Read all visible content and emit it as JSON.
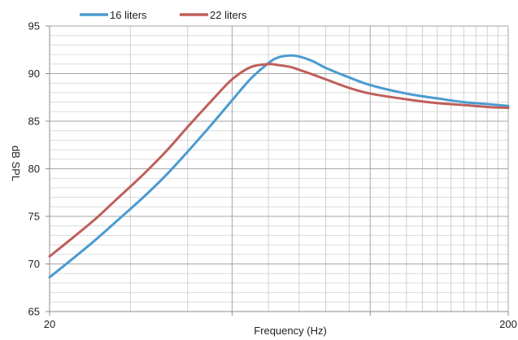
{
  "chart_data": {
    "type": "line",
    "title": "",
    "xlabel": "Frequency (Hz)",
    "ylabel": "dB SPL",
    "x_scale": "log",
    "xlim": [
      20,
      200
    ],
    "ylim": [
      65,
      95
    ],
    "x_tick_labels": [
      "20",
      "200"
    ],
    "y_ticks": [
      65,
      70,
      75,
      80,
      85,
      90,
      95
    ],
    "grid": true,
    "legend_position": "top-left",
    "series": [
      {
        "name": "16 liters",
        "color": "#4A9BD1",
        "x": [
          20,
          22,
          25,
          28,
          32,
          36,
          40,
          45,
          50,
          55,
          60,
          63,
          67,
          70,
          75,
          80,
          90,
          100,
          120,
          140,
          160,
          180,
          200
        ],
        "y": [
          68.6,
          70.2,
          72.4,
          74.5,
          77.0,
          79.4,
          81.8,
          84.6,
          87.2,
          89.5,
          91.1,
          91.7,
          91.9,
          91.8,
          91.3,
          90.6,
          89.6,
          88.8,
          87.9,
          87.4,
          87.0,
          86.8,
          86.6
        ]
      },
      {
        "name": "22 liters",
        "color": "#BF5F5A",
        "x": [
          20,
          22,
          25,
          28,
          32,
          36,
          40,
          45,
          50,
          55,
          60,
          63,
          67,
          70,
          75,
          80,
          90,
          100,
          120,
          140,
          160,
          180,
          200
        ],
        "y": [
          70.8,
          72.4,
          74.6,
          76.8,
          79.4,
          81.9,
          84.4,
          87.1,
          89.4,
          90.7,
          91.0,
          90.9,
          90.7,
          90.4,
          89.9,
          89.4,
          88.5,
          87.9,
          87.3,
          86.9,
          86.7,
          86.5,
          86.4
        ]
      }
    ]
  }
}
